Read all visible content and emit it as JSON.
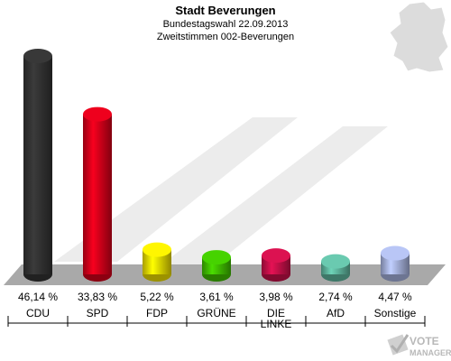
{
  "title": "Stadt Beverungen",
  "subtitle_1": "Bundestagswahl 22.09.2013",
  "subtitle_2": "Zweitstimmen 002-Beverungen",
  "brand": {
    "line1": "VOTE",
    "line2": "MANAGER"
  },
  "chart_data": {
    "type": "bar",
    "categories": [
      "CDU",
      "SPD",
      "FDP",
      "GRÜNE",
      "DIE LINKE",
      "AfD",
      "Sonstige"
    ],
    "values": [
      46.14,
      33.83,
      5.22,
      3.61,
      3.98,
      2.74,
      4.47
    ],
    "value_labels": [
      "46,14 %",
      "33,83 %",
      "5,22 %",
      "3,61 %",
      "3,98 %",
      "2,74 %",
      "4,47 %"
    ],
    "colors": [
      "#333333",
      "#d8001a",
      "#f0e000",
      "#40c000",
      "#c8104a",
      "#60b8a0",
      "#a8b4e0"
    ],
    "ylim": [
      0,
      46.14
    ]
  }
}
